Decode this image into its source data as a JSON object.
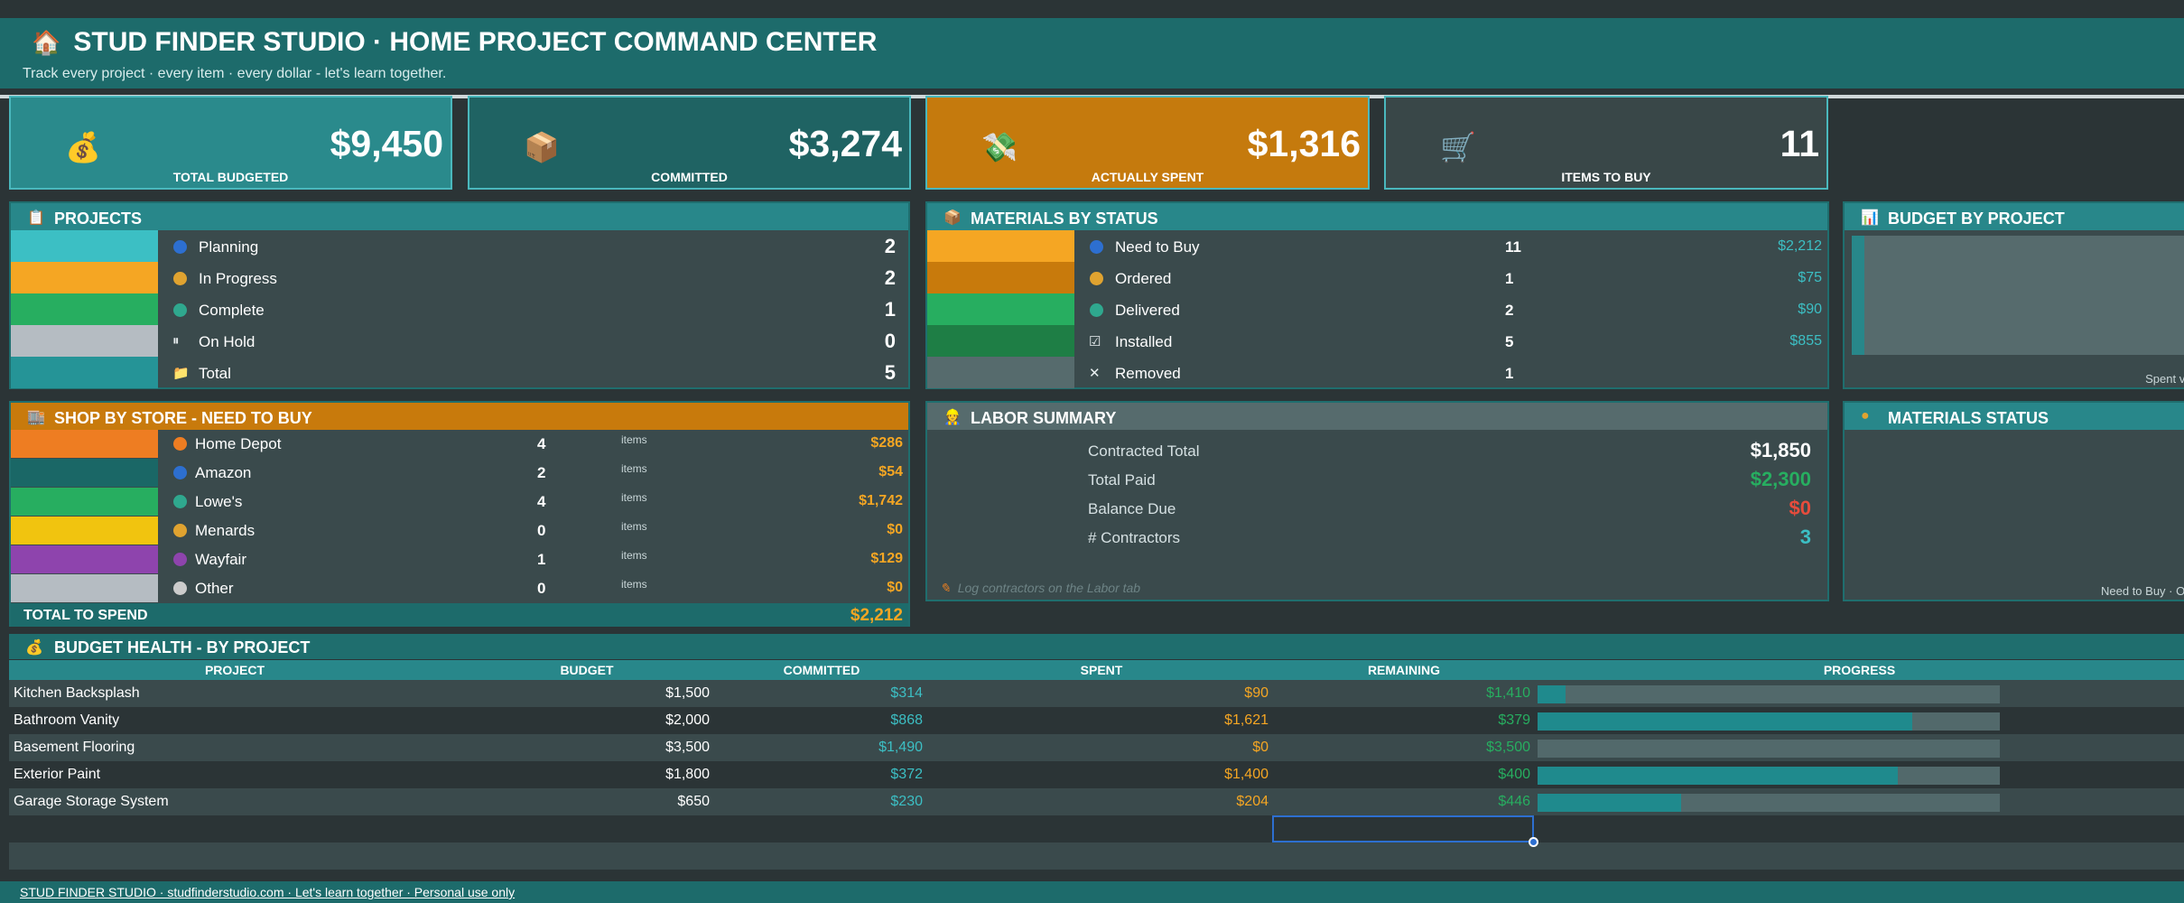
{
  "header": {
    "icon": "house-icon",
    "title": "STUD FINDER STUDIO  ·  HOME PROJECT COMMAND CENTER",
    "subtitle": "Track every project · every item · every dollar - let's learn together."
  },
  "kpis": [
    {
      "icon": "money-bag-icon",
      "value": "$9,450",
      "label": "TOTAL BUDGETED",
      "color": "#2a8a8c"
    },
    {
      "icon": "package-icon",
      "value": "$3,274",
      "label": "COMMITTED",
      "color": "#1f6363"
    },
    {
      "icon": "money-wings-icon",
      "value": "$1,316",
      "label": "ACTUALLY SPENT",
      "color": "#c57a0d"
    },
    {
      "icon": "cart-icon",
      "value": "11",
      "label": "ITEMS TO BUY",
      "color": "#394748"
    }
  ],
  "projects": {
    "title": "PROJECTS",
    "rows": [
      {
        "label": "Planning",
        "value": "2",
        "swatch": "#3cbfc4",
        "dot": "#2d6fd0"
      },
      {
        "label": "In Progress",
        "value": "2",
        "swatch": "#f5a623",
        "dot": "#e0a330"
      },
      {
        "label": "Complete",
        "value": "1",
        "swatch": "#27ae60",
        "dot": "#2fa88e"
      },
      {
        "label": "On Hold",
        "value": "0",
        "swatch": "#b5bcc2",
        "glyph": "⏸"
      },
      {
        "label": "Total",
        "value": "5",
        "swatch": "#259497",
        "glyph": "📁"
      }
    ]
  },
  "materials": {
    "title": "MATERIALS BY STATUS",
    "rows": [
      {
        "label": "Need to Buy",
        "count": "11",
        "amount": "$2,212",
        "swatch": "#f5a623",
        "dot": "#2d6fd0"
      },
      {
        "label": "Ordered",
        "count": "1",
        "amount": "$75",
        "swatch": "#c87a0c",
        "dot": "#e0a330"
      },
      {
        "label": "Delivered",
        "count": "2",
        "amount": "$90",
        "swatch": "#27ae60",
        "dot": "#2fa88e"
      },
      {
        "label": "Installed",
        "count": "5",
        "amount": "$855",
        "swatch": "#1e7e45",
        "glyph": "☑"
      },
      {
        "label": "Removed",
        "count": "1",
        "amount": "",
        "swatch": "#566b6d",
        "glyph": "✕"
      }
    ]
  },
  "budget_by_project": {
    "title": "BUDGET BY PROJECT",
    "note": "Spent vs B"
  },
  "materials_status": {
    "title": "MATERIALS STATUS",
    "note": "Need to Buy · Orde"
  },
  "shop": {
    "title": "SHOP BY STORE - NEED TO BUY",
    "unit": "items",
    "rows": [
      {
        "store": "Home Depot",
        "count": "4",
        "amount": "$286",
        "swatch": "#ee7d22",
        "dot": "#ee7d22"
      },
      {
        "store": "Amazon",
        "count": "2",
        "amount": "$54",
        "swatch": "#1a6766",
        "dot": "#2d6fd0"
      },
      {
        "store": "Lowe's",
        "count": "4",
        "amount": "$1,742",
        "swatch": "#27ae60",
        "dot": "#2fa88e"
      },
      {
        "store": "Menards",
        "count": "0",
        "amount": "$0",
        "swatch": "#f1c40f",
        "dot": "#e0a330"
      },
      {
        "store": "Wayfair",
        "count": "1",
        "amount": "$129",
        "swatch": "#8e44ad",
        "dot": "#8e44ad"
      },
      {
        "store": "Other",
        "count": "0",
        "amount": "$0",
        "swatch": "#b5bcc2",
        "dot": "#cccccc"
      }
    ],
    "total_label": "TOTAL TO SPEND",
    "total_value": "$2,212"
  },
  "labor": {
    "title": "LABOR SUMMARY",
    "rows": [
      {
        "label": "Contracted Total",
        "value": "$1,850",
        "color": "#ffffff"
      },
      {
        "label": "Total Paid",
        "value": "$2,300",
        "color": "#27ae60"
      },
      {
        "label": "Balance Due",
        "value": "$0",
        "color": "#e74c3c"
      },
      {
        "label": "# Contractors",
        "value": "3",
        "color": "#3cbfc4"
      }
    ],
    "note": "Log contractors on the Labor tab"
  },
  "budget_health": {
    "title": "BUDGET HEALTH - BY PROJECT",
    "columns": [
      "PROJECT",
      "BUDGET",
      "COMMITTED",
      "SPENT",
      "REMAINING",
      "PROGRESS"
    ],
    "rows": [
      {
        "project": "Kitchen Backsplash",
        "budget": "$1,500",
        "committed": "$314",
        "spent": "$90",
        "remaining": "$1,410",
        "progress": 0.06
      },
      {
        "project": "Bathroom Vanity",
        "budget": "$2,000",
        "committed": "$868",
        "spent": "$1,621",
        "remaining": "$379",
        "progress": 0.81
      },
      {
        "project": "Basement Flooring",
        "budget": "$3,500",
        "committed": "$1,490",
        "spent": "$0",
        "remaining": "$3,500",
        "progress": 0.0
      },
      {
        "project": "Exterior Paint",
        "budget": "$1,800",
        "committed": "$372",
        "spent": "$1,400",
        "remaining": "$400",
        "progress": 0.78
      },
      {
        "project": "Garage Storage System",
        "budget": "$650",
        "committed": "$230",
        "spent": "$204",
        "remaining": "$446",
        "progress": 0.31
      }
    ]
  },
  "footer": "  STUD FINDER STUDIO  ·  studfinderstudio.com  ·  Let's learn together  ·  Personal use only",
  "colors": {
    "teal": "#1d6b6b",
    "accent": "#28878a",
    "orange": "#c87a0c",
    "committed_text": "#3cbfc4",
    "spent_text": "#f5a623",
    "remaining_text": "#27ae60"
  }
}
